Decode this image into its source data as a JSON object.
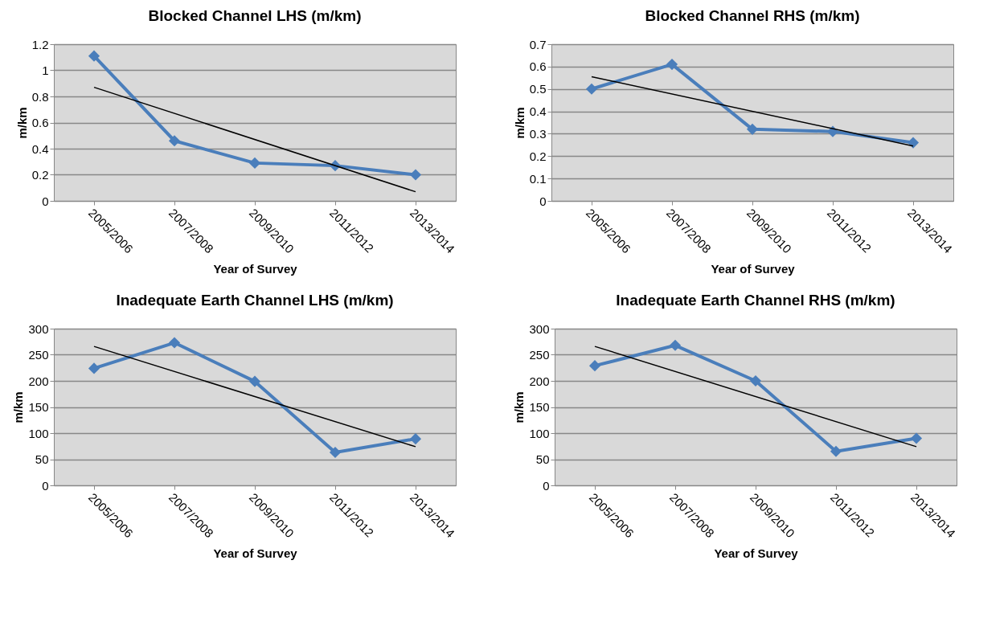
{
  "chart_data": [
    {
      "type": "line",
      "title": "Blocked Channel LHS (m/km)",
      "xlabel": "Year of Survey",
      "ylabel": "m/km",
      "categories": [
        "2005/2006",
        "2007/2008",
        "2009/2010",
        "2011/2012",
        "2013/2014"
      ],
      "ylim": [
        0,
        1.2
      ],
      "yticks": [
        0,
        0.2,
        0.4,
        0.6,
        0.8,
        1,
        1.2
      ],
      "grid": "y",
      "line_style": "solid",
      "series": [
        {
          "color": "#4a7ebb",
          "marker": "diamond",
          "values": [
            1.11,
            0.46,
            0.29,
            0.27,
            0.2
          ]
        },
        {
          "type": "line",
          "color": "#000000",
          "marker": "none",
          "x": [
            "2005/2006",
            "2013/2014"
          ],
          "values": [
            0.87,
            0.07
          ]
        }
      ]
    },
    {
      "type": "line",
      "title": "Blocked Channel RHS (m/km)",
      "xlabel": "Year of Survey",
      "ylabel": "m/km",
      "categories": [
        "2005/2006",
        "2007/2008",
        "2009/2010",
        "2011/2012",
        "2013/2014"
      ],
      "ylim": [
        0,
        0.7
      ],
      "yticks": [
        0,
        0.1,
        0.2,
        0.3,
        0.4,
        0.5,
        0.6,
        0.7
      ],
      "grid": "y",
      "line_style": "solid",
      "series": [
        {
          "color": "#4a7ebb",
          "marker": "diamond",
          "values": [
            0.5,
            0.61,
            0.32,
            0.31,
            0.26
          ]
        },
        {
          "type": "line",
          "color": "#000000",
          "marker": "none",
          "x": [
            "2005/2006",
            "2013/2014"
          ],
          "values": [
            0.555,
            0.245
          ]
        }
      ]
    },
    {
      "type": "line",
      "title": "Inadequate Earth Channel LHS (m/km)",
      "xlabel": "Year of Survey",
      "ylabel": "m/km",
      "categories": [
        "2005/2006",
        "2007/2008",
        "2009/2010",
        "2011/2012",
        "2013/2014"
      ],
      "ylim": [
        0,
        300
      ],
      "yticks": [
        0,
        50,
        100,
        150,
        200,
        250,
        300
      ],
      "grid": "y",
      "line_style": "solid",
      "series": [
        {
          "color": "#4a7ebb",
          "marker": "diamond",
          "values": [
            224,
            273,
            199,
            63,
            89
          ]
        },
        {
          "type": "line",
          "color": "#000000",
          "marker": "none",
          "x": [
            "2005/2006",
            "2013/2014"
          ],
          "values": [
            266,
            74
          ]
        }
      ]
    },
    {
      "type": "line",
      "title": "Inadequate Earth Channel RHS (m/km)",
      "xlabel": "Year of Survey",
      "ylabel": "m/km",
      "categories": [
        "2005/2006",
        "2007/2008",
        "2009/2010",
        "2011/2012",
        "2013/2014"
      ],
      "ylim": [
        0,
        300
      ],
      "yticks": [
        0,
        50,
        100,
        150,
        200,
        250,
        300
      ],
      "grid": "y",
      "line_style": "solid",
      "series": [
        {
          "color": "#4a7ebb",
          "marker": "diamond",
          "values": [
            229,
            268,
            200,
            65,
            90
          ]
        },
        {
          "type": "line",
          "color": "#000000",
          "marker": "none",
          "x": [
            "2005/2006",
            "2013/2014"
          ],
          "values": [
            266,
            74
          ]
        }
      ]
    }
  ]
}
